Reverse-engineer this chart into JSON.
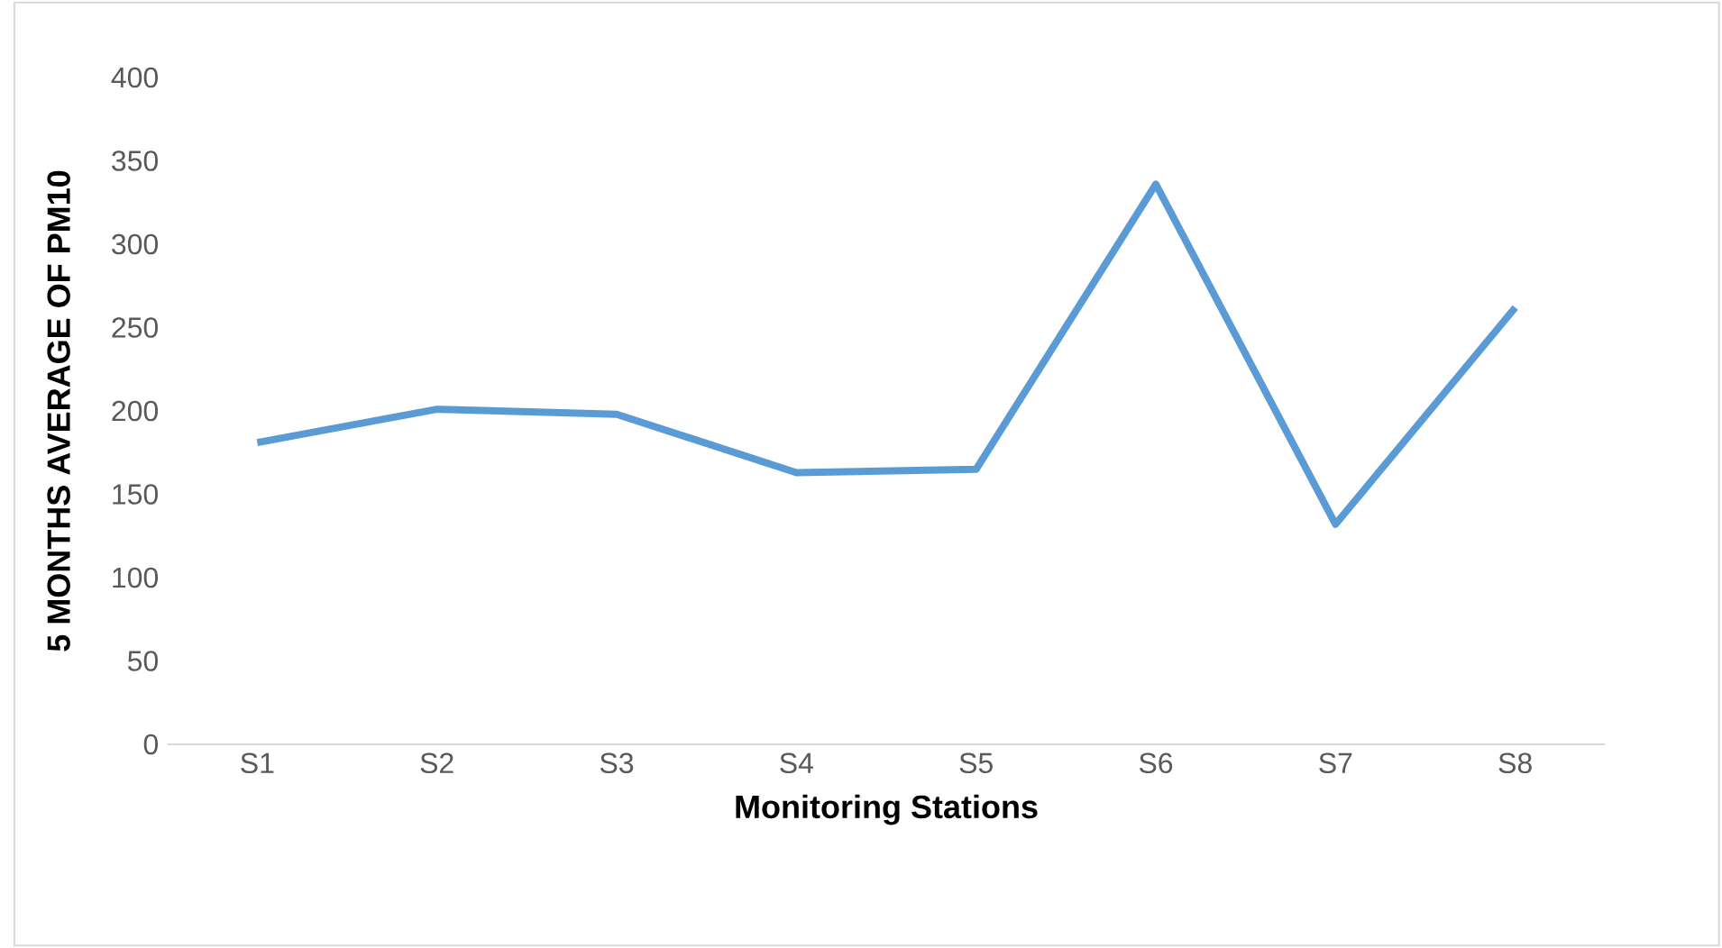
{
  "chart_data": {
    "type": "line",
    "xlabel": "Monitoring Stations",
    "ylabel": "5 MONTHS AVERAGE OF PM10",
    "categories": [
      "S1",
      "S2",
      "S3",
      "S4",
      "S5",
      "S6",
      "S7",
      "S8"
    ],
    "values": [
      181,
      201,
      198,
      163,
      165,
      336,
      132,
      262
    ],
    "color": "#5b9bd5",
    "marker": "none",
    "line_style": "solid",
    "ylim": [
      0,
      400
    ],
    "yticks": [
      0,
      50,
      100,
      150,
      200,
      250,
      300,
      350,
      400
    ]
  }
}
